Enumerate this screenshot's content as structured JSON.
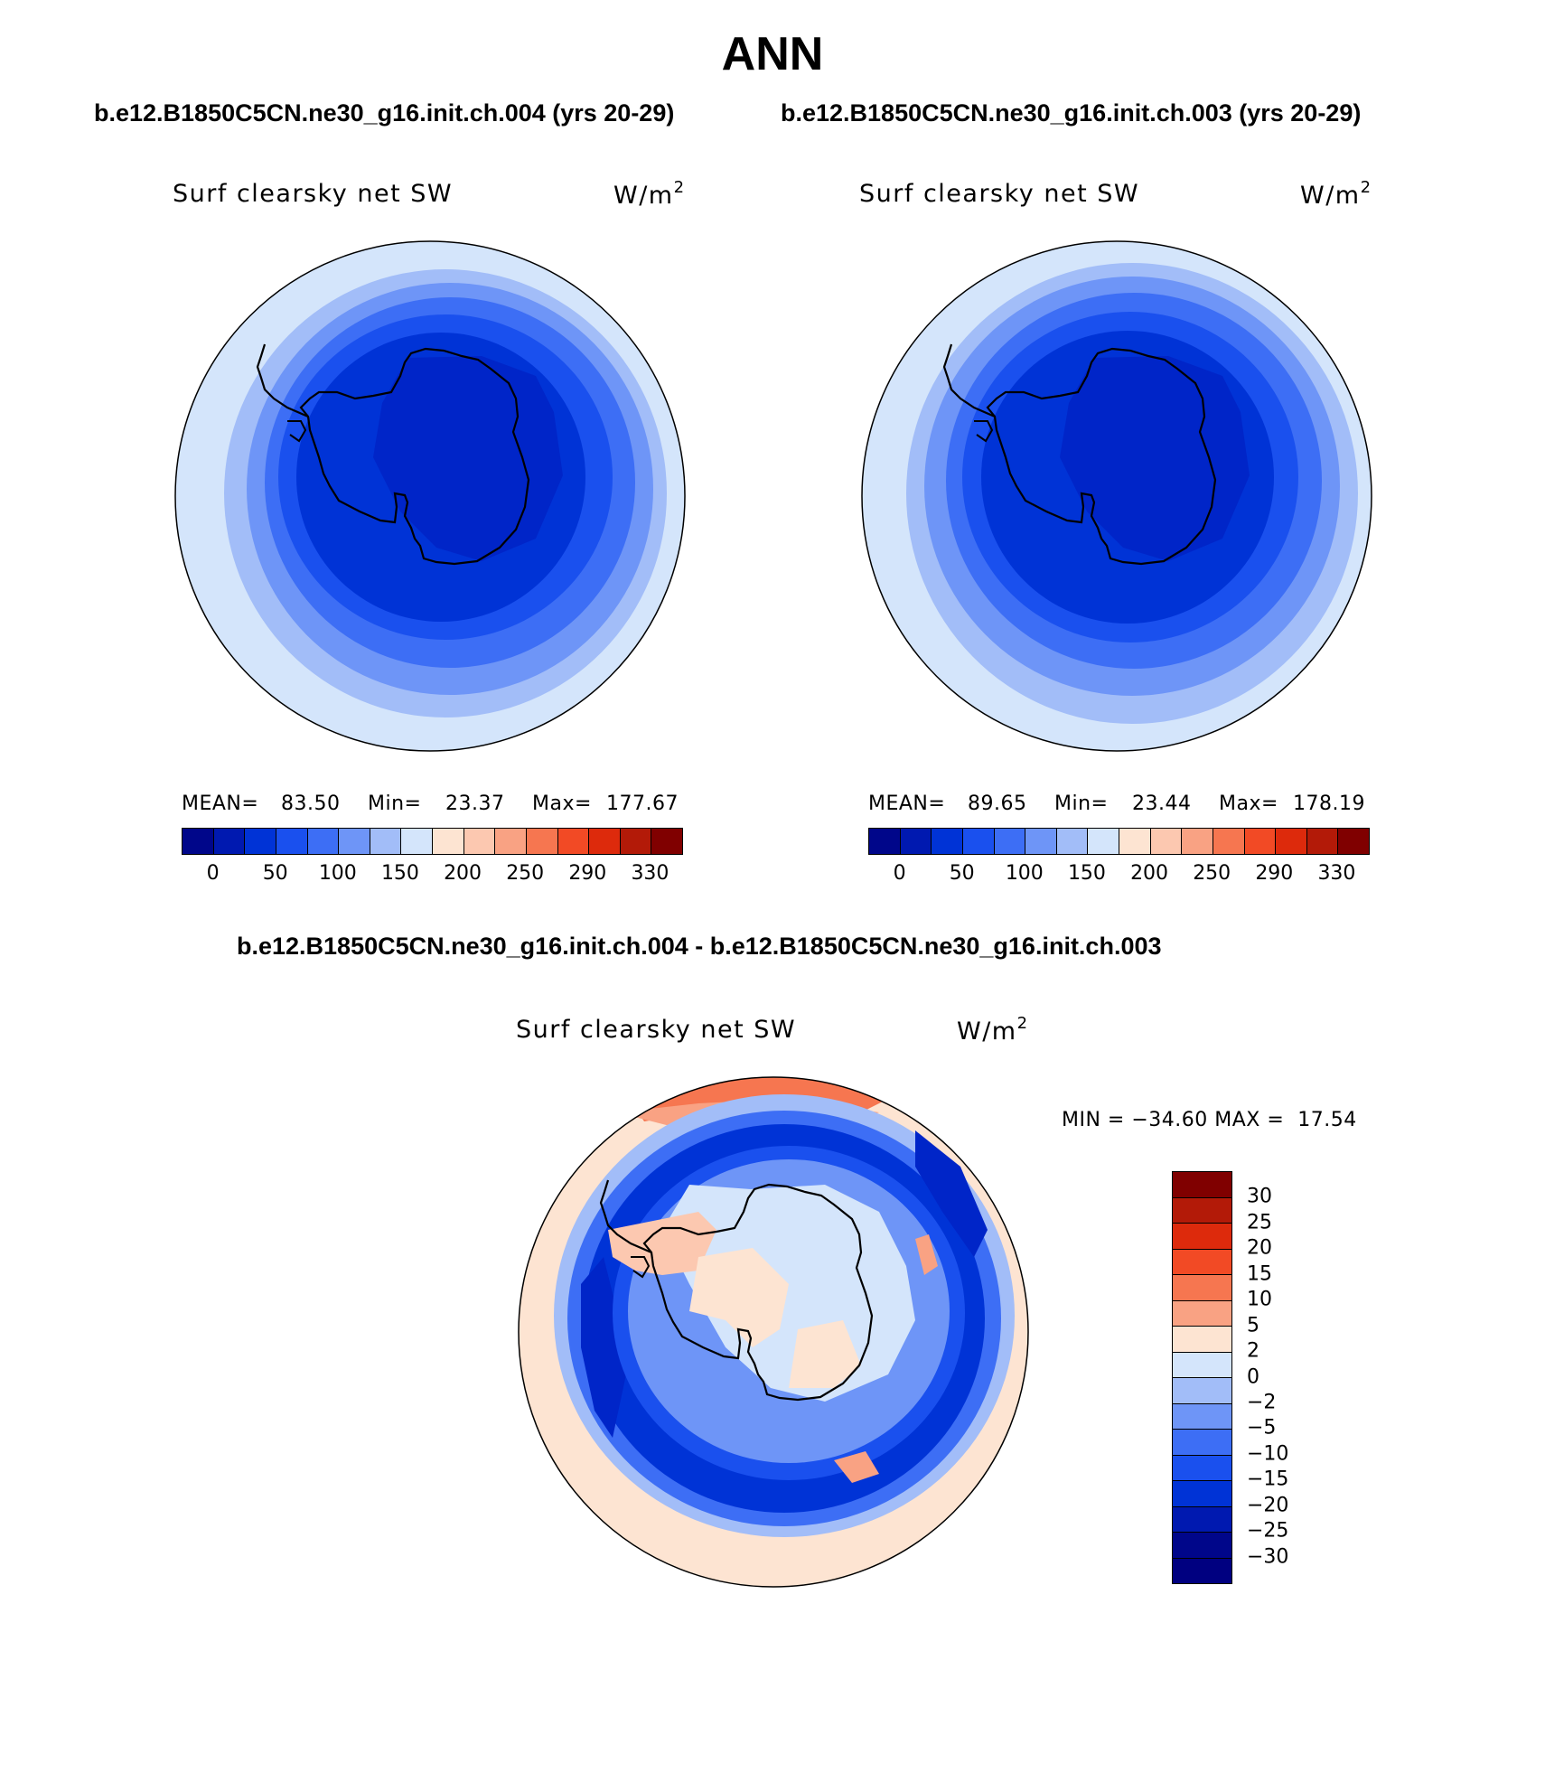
{
  "figure": {
    "title": "ANN",
    "subtitle_left": "b.e12.B1850C5CN.ne30_g16.init.ch.004 (yrs 20-29)",
    "subtitle_right": "b.e12.B1850C5CN.ne30_g16.init.ch.003 (yrs 20-29)",
    "diff_title": "b.e12.B1850C5CN.ne30_g16.init.ch.004 - b.e12.B1850C5CN.ne30_g16.init.ch.003"
  },
  "panels": [
    {
      "variable": "Surf clearsky net SW",
      "units_base": "W/m",
      "units_exp": "2",
      "mean_label": "MEAN=",
      "mean": "83.50",
      "min_label": "Min=",
      "min": "23.37",
      "max_label": "Max=",
      "max": "177.67"
    },
    {
      "variable": "Surf clearsky net SW",
      "units_base": "W/m",
      "units_exp": "2",
      "mean_label": "MEAN=",
      "mean": "89.65",
      "min_label": "Min=",
      "min": "23.44",
      "max_label": "Max=",
      "max": "178.19"
    },
    {
      "variable": "Surf clearsky net SW",
      "units_base": "W/m",
      "units_exp": "2",
      "minmax_text": "MIN = −34.60 MAX =  17.54"
    }
  ],
  "colorbar_main": {
    "colors": [
      "#00068a",
      "#0019b0",
      "#0033d6",
      "#1a50ee",
      "#3d6ef5",
      "#6e95f7",
      "#a2bdf8",
      "#d4e5fb",
      "#fde4d2",
      "#fcc8b0",
      "#f9a283",
      "#f67650",
      "#f24a25",
      "#dd2a0c",
      "#b31a08",
      "#800000"
    ],
    "labels": [
      "0",
      "50",
      "100",
      "150",
      "200",
      "250",
      "290",
      "330"
    ]
  },
  "colorbar_diff": {
    "colors": [
      "#800000",
      "#b31a08",
      "#dd2a0c",
      "#f24a25",
      "#f67650",
      "#f9a283",
      "#fde4d2",
      "#d4e5fb",
      "#a2bdf8",
      "#6e95f7",
      "#3d6ef5",
      "#1a50ee",
      "#0033d6",
      "#0019b0",
      "#00068a",
      "#000080"
    ],
    "labels": [
      "30",
      "25",
      "20",
      "15",
      "10",
      "5",
      "2",
      "0",
      "−2",
      "−5",
      "−10",
      "−15",
      "−20",
      "−25",
      "−30"
    ]
  },
  "map_colors": {
    "c0": "#0025c8",
    "c1": "#0033d6",
    "c2": "#1a50ee",
    "c3": "#3d6ef5",
    "c4": "#6e95f7",
    "c5": "#a2bdf8",
    "c6": "#d4e5fb",
    "w1": "#fde4d2",
    "w2": "#fcc8b0",
    "w3": "#f9a283",
    "w4": "#f67650"
  }
}
